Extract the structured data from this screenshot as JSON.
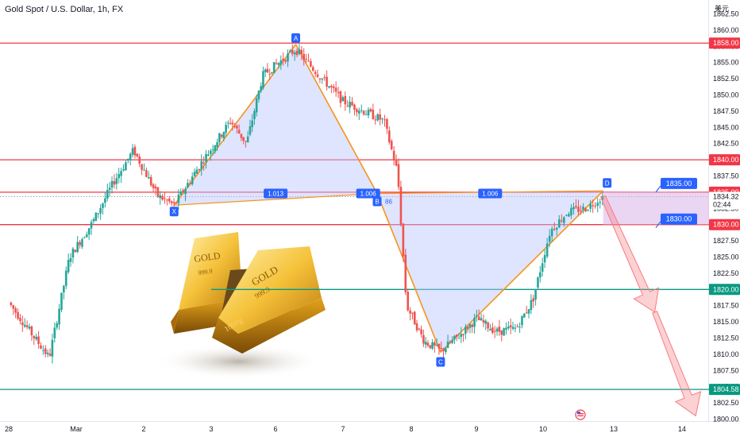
{
  "header": {
    "title": "Gold Spot / U.S. Dollar, 1h, FX",
    "currency": "美元"
  },
  "colors": {
    "up": "#26a69a",
    "down": "#ef5350",
    "resistance": "#f23645",
    "support": "#089981",
    "harmonic": "#f7931a",
    "harmonic_fill": "#b8c3ff",
    "point_label": "#2962ff",
    "projection": "#f77c80"
  },
  "chart_data": {
    "type": "candlestick",
    "title": "Gold Spot / U.S. Dollar, 1h, FX",
    "ylim": [
      1800,
      1865
    ],
    "y_ticks": [
      "1800.00",
      "1802.50",
      "1805.00",
      "1807.50",
      "1810.00",
      "1812.50",
      "1815.00",
      "1817.50",
      "1820.00",
      "1822.50",
      "1825.00",
      "1827.50",
      "1830.00",
      "1832.50",
      "1835.00",
      "1837.50",
      "1840.00",
      "1842.50",
      "1845.00",
      "1847.50",
      "1850.00",
      "1852.50",
      "1855.00",
      "1857.50",
      "1860.00",
      "1862.50"
    ],
    "x_ticks": [
      "28",
      "Mar",
      "2",
      "3",
      "6",
      "7",
      "8",
      "9",
      "10",
      "13",
      "14"
    ],
    "price_path": [
      {
        "x": 0,
        "y": 1818.0
      },
      {
        "x": 0.35,
        "y": 1813.0
      },
      {
        "x": 0.6,
        "y": 1809.5
      },
      {
        "x": 0.9,
        "y": 1825.0
      },
      {
        "x": 1.25,
        "y": 1830.5
      },
      {
        "x": 1.55,
        "y": 1836.5
      },
      {
        "x": 1.85,
        "y": 1841.5
      },
      {
        "x": 2.2,
        "y": 1834.5
      },
      {
        "x": 2.45,
        "y": 1833.0
      },
      {
        "x": 2.85,
        "y": 1839.5
      },
      {
        "x": 3.3,
        "y": 1846.0
      },
      {
        "x": 3.55,
        "y": 1842.5
      },
      {
        "x": 3.8,
        "y": 1853.0
      },
      {
        "x": 4.3,
        "y": 1857.0
      },
      {
        "x": 4.65,
        "y": 1853.0
      },
      {
        "x": 5.0,
        "y": 1849.0
      },
      {
        "x": 5.3,
        "y": 1847.5
      },
      {
        "x": 5.6,
        "y": 1846.0
      },
      {
        "x": 5.8,
        "y": 1838.0
      },
      {
        "x": 5.93,
        "y": 1817.5
      },
      {
        "x": 6.2,
        "y": 1812.0
      },
      {
        "x": 6.45,
        "y": 1810.5
      },
      {
        "x": 6.75,
        "y": 1813.0
      },
      {
        "x": 7.0,
        "y": 1815.5
      },
      {
        "x": 7.3,
        "y": 1813.5
      },
      {
        "x": 7.6,
        "y": 1814.0
      },
      {
        "x": 7.85,
        "y": 1818.5
      },
      {
        "x": 8.1,
        "y": 1829.0
      },
      {
        "x": 8.35,
        "y": 1832.0
      },
      {
        "x": 8.6,
        "y": 1832.5
      },
      {
        "x": 8.85,
        "y": 1834.32
      }
    ],
    "horizontal_lines": [
      {
        "price": 1858.0,
        "label": "1858.00",
        "role": "resistance",
        "x_from": -0.4
      },
      {
        "price": 1840.0,
        "label": "1840.00",
        "role": "resistance",
        "x_from": -0.4
      },
      {
        "price": 1835.0,
        "label": "1835.00",
        "role": "resistance",
        "x_from": -0.4
      },
      {
        "price": 1830.0,
        "label": "1830.00",
        "role": "resistance",
        "x_from": -0.4
      },
      {
        "price": 1820.0,
        "label": "1820.00",
        "role": "support",
        "x_from": 3.0
      },
      {
        "price": 1804.58,
        "label": "1804.58",
        "role": "support",
        "x_from": -0.4
      }
    ],
    "current_price": {
      "value": "1834.32",
      "countdown": "02:44"
    },
    "harmonic_pattern": {
      "points": [
        {
          "name": "X",
          "x": 2.45,
          "y": 1833.0
        },
        {
          "name": "A",
          "x": 4.3,
          "y": 1857.8
        },
        {
          "name": "B",
          "x": 5.5,
          "y": 1834.8
        },
        {
          "name": "C",
          "x": 6.45,
          "y": 1810.3
        },
        {
          "name": "D",
          "x": 8.85,
          "y": 1835.2
        }
      ],
      "ratios": [
        {
          "label": "1.013",
          "between": [
            "X",
            "B"
          ]
        },
        {
          "label": "1.006",
          "between": [
            "A",
            "C"
          ]
        },
        {
          "label": "1.006",
          "between": [
            "B",
            "D"
          ]
        }
      ],
      "fragment_label": "86"
    },
    "annotations": [
      {
        "label": "1835.00",
        "price": 1835.0
      },
      {
        "label": "1830.00",
        "price": 1830.0
      }
    ],
    "projection": [
      {
        "x": 8.85,
        "y": 1834.3
      },
      {
        "x": 9.6,
        "y": 1816.5
      },
      {
        "x": 10.2,
        "y": 1800.5
      }
    ]
  }
}
